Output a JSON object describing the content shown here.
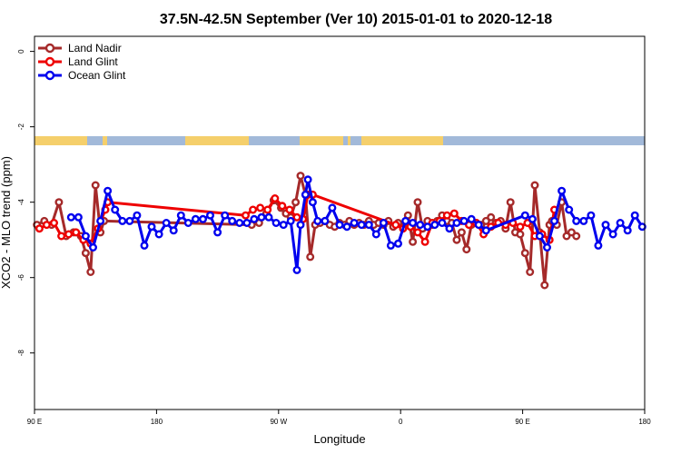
{
  "chart_data": {
    "type": "line",
    "title": "37.5N-42.5N September (Ver 10)   2015-01-01 to 2020-12-18",
    "xlabel": "Longitude",
    "ylabel": "XCO2 - MLO trend (ppm)",
    "xlim": [
      0,
      500
    ],
    "ylim": [
      -9.5,
      0.4
    ],
    "x_ticks": [
      {
        "value": 0,
        "label": "90 E"
      },
      {
        "value": 100,
        "label": "180"
      },
      {
        "value": 200,
        "label": "90 W"
      },
      {
        "value": 300,
        "label": "0"
      },
      {
        "value": 400,
        "label": "90 E"
      },
      {
        "value": 500,
        "label": "180"
      }
    ],
    "y_ticks": [
      {
        "value": 0,
        "label": "0"
      },
      {
        "value": -2,
        "label": "-2"
      },
      {
        "value": -4,
        "label": "-4"
      },
      {
        "value": -6,
        "label": "-6"
      },
      {
        "value": -8,
        "label": "-8"
      }
    ],
    "grid": false,
    "legend_position": "top-left",
    "land_strip": {
      "y_center": -2.37,
      "land_color": "#f5cf6b",
      "ocean_color": "#a2b9d9"
    },
    "series": [
      {
        "name": "Land Nadir",
        "color": "#a52a2a",
        "x": [
          2,
          8,
          14,
          20,
          26,
          32,
          38,
          42,
          46,
          50,
          54,
          57,
          178,
          184,
          190,
          196,
          202,
          206,
          210,
          214,
          218,
          222,
          226,
          230,
          234,
          238,
          242,
          246,
          250,
          254,
          258,
          262,
          266,
          270,
          274,
          278,
          282,
          286,
          290,
          294,
          298,
          302,
          306,
          310,
          314,
          318,
          322,
          326,
          330,
          334,
          338,
          342,
          346,
          350,
          354,
          358,
          362,
          366,
          370,
          374,
          378,
          382,
          386,
          390,
          394,
          398,
          402,
          406,
          410,
          414,
          418,
          422,
          424,
          428,
          432,
          436,
          440,
          444
        ],
        "y": [
          -4.6,
          -4.5,
          -4.6,
          -4.0,
          -4.9,
          -4.8,
          -4.9,
          -5.35,
          -5.85,
          -3.55,
          -4.8,
          -4.5,
          -4.6,
          -4.55,
          -4.3,
          -3.95,
          -4.15,
          -4.3,
          -4.4,
          -4.0,
          -3.3,
          -3.8,
          -5.45,
          -4.6,
          -4.55,
          -4.5,
          -4.6,
          -4.65,
          -4.55,
          -4.6,
          -4.5,
          -4.6,
          -4.55,
          -4.6,
          -4.5,
          -4.6,
          -4.55,
          -4.6,
          -4.5,
          -4.65,
          -4.55,
          -4.65,
          -4.35,
          -5.05,
          -4.0,
          -4.7,
          -4.5,
          -4.6,
          -4.5,
          -4.35,
          -4.5,
          -4.55,
          -5.0,
          -4.8,
          -5.25,
          -4.6,
          -4.55,
          -4.6,
          -4.5,
          -4.4,
          -4.55,
          -4.5,
          -4.7,
          -4.0,
          -4.8,
          -4.85,
          -5.35,
          -5.85,
          -3.55,
          -4.8,
          -6.2,
          -4.6,
          -4.5,
          -4.6,
          -4.0,
          -4.9,
          -4.8,
          -4.9
        ]
      },
      {
        "name": "Land Glint",
        "color": "#ee0000",
        "x": [
          4,
          10,
          16,
          22,
          28,
          34,
          40,
          46,
          52,
          58,
          60,
          173,
          179,
          185,
          191,
          197,
          203,
          209,
          215,
          220,
          224,
          228,
          296,
          302,
          308,
          314,
          320,
          326,
          332,
          338,
          344,
          350,
          356,
          362,
          368,
          374,
          380,
          386,
          392,
          398,
          404,
          410,
          416,
          422,
          426
        ],
        "y": [
          -4.7,
          -4.6,
          -4.55,
          -4.9,
          -4.85,
          -4.8,
          -5.0,
          -5.1,
          -4.7,
          -4.2,
          -4.0,
          -4.35,
          -4.2,
          -4.15,
          -4.2,
          -3.9,
          -4.1,
          -4.2,
          -4.4,
          -4.45,
          -3.8,
          -3.8,
          -4.6,
          -4.7,
          -4.65,
          -4.8,
          -5.05,
          -4.55,
          -4.5,
          -4.35,
          -4.3,
          -4.5,
          -4.6,
          -4.55,
          -4.85,
          -4.65,
          -4.55,
          -4.6,
          -4.55,
          -4.65,
          -4.55,
          -4.9,
          -4.85,
          -5.0,
          -4.2
        ]
      },
      {
        "name": "Ocean Glint",
        "color": "#0000ee",
        "x": [
          30,
          36,
          42,
          48,
          54,
          60,
          66,
          72,
          78,
          84,
          90,
          96,
          102,
          108,
          114,
          120,
          126,
          132,
          138,
          144,
          150,
          156,
          162,
          168,
          174,
          180,
          186,
          192,
          198,
          204,
          210,
          215,
          218,
          222,
          224,
          228,
          232,
          238,
          244,
          250,
          256,
          262,
          268,
          274,
          280,
          286,
          292,
          298,
          304,
          310,
          316,
          322,
          328,
          334,
          340,
          346,
          352,
          358,
          364,
          370,
          402,
          408,
          414,
          420,
          426,
          432,
          438,
          444,
          450,
          456,
          462,
          468,
          474,
          480,
          486,
          492,
          498
        ],
        "y": [
          -4.4,
          -4.4,
          -4.9,
          -5.2,
          -4.5,
          -3.7,
          -4.2,
          -4.5,
          -4.5,
          -4.35,
          -5.15,
          -4.65,
          -4.85,
          -4.55,
          -4.75,
          -4.35,
          -4.55,
          -4.45,
          -4.45,
          -4.35,
          -4.8,
          -4.35,
          -4.5,
          -4.55,
          -4.55,
          -4.45,
          -4.4,
          -4.4,
          -4.55,
          -4.6,
          -4.5,
          -5.8,
          -4.6,
          -3.8,
          -3.4,
          -4.0,
          -4.5,
          -4.5,
          -4.15,
          -4.6,
          -4.65,
          -4.55,
          -4.6,
          -4.6,
          -4.85,
          -4.55,
          -5.15,
          -5.1,
          -4.5,
          -4.55,
          -4.6,
          -4.65,
          -4.6,
          -4.55,
          -4.7,
          -4.55,
          -4.5,
          -4.45,
          -4.6,
          -4.75,
          -4.35,
          -4.45,
          -4.9,
          -5.2,
          -4.5,
          -3.7,
          -4.2,
          -4.5,
          -4.5,
          -4.35,
          -5.15,
          -4.6,
          -4.85,
          -4.55,
          -4.75,
          -4.35,
          -4.65
        ]
      }
    ]
  }
}
